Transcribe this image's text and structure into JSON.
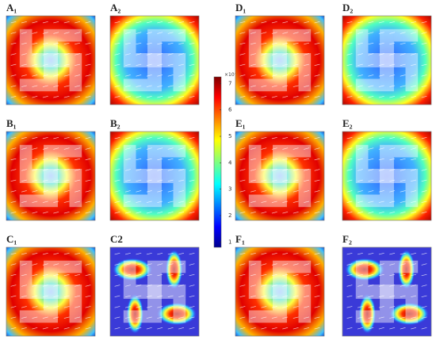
{
  "panels": [
    {
      "label": "A₁",
      "kind": "hot"
    },
    {
      "label": "A₂",
      "kind": "cold"
    },
    {
      "label": "D₁",
      "kind": "hot"
    },
    {
      "label": "D₂",
      "kind": "cold"
    },
    {
      "label": "B₁",
      "kind": "hot"
    },
    {
      "label": "B₂",
      "kind": "cold"
    },
    {
      "label": "E₁",
      "kind": "hot"
    },
    {
      "label": "E₂",
      "kind": "cold"
    },
    {
      "label": "C₁",
      "kind": "hot"
    },
    {
      "label": "C2",
      "kind": "blob"
    },
    {
      "label": "F₁",
      "kind": "hot"
    },
    {
      "label": "F₂",
      "kind": "blob"
    }
  ],
  "colorbar": {
    "exponent_label": "×10⁻⁴",
    "range": [
      0.8,
      7.25
    ],
    "ticks": [
      1,
      2,
      3,
      4,
      5,
      6,
      7
    ]
  }
}
